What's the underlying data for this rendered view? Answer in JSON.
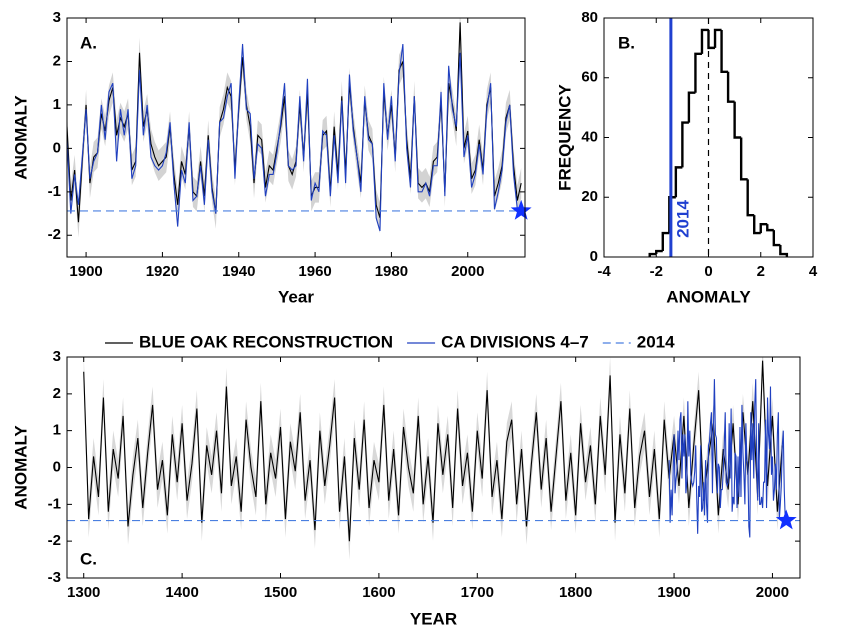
{
  "chart_data": [
    {
      "type": "line",
      "label": "A.",
      "xlabel": "Year",
      "ylabel": "ANOMALY",
      "xlim": [
        1895,
        2015
      ],
      "xticks": [
        1900,
        1920,
        1940,
        1960,
        1980,
        2000
      ],
      "ylim": [
        -2.5,
        3
      ],
      "yticks": [
        -2,
        -1,
        0,
        1,
        2,
        3
      ],
      "error": 0.35,
      "band_color": "#d3d3d3",
      "reference": {
        "x": 2014,
        "value": -1.44,
        "color": "#4a7fe0"
      },
      "x": [
        1895,
        1896,
        1897,
        1898,
        1899,
        1900,
        1901,
        1902,
        1903,
        1904,
        1905,
        1906,
        1907,
        1908,
        1909,
        1910,
        1911,
        1912,
        1913,
        1914,
        1915,
        1916,
        1917,
        1918,
        1919,
        1920,
        1921,
        1922,
        1923,
        1924,
        1925,
        1926,
        1927,
        1928,
        1929,
        1930,
        1931,
        1932,
        1933,
        1934,
        1935,
        1936,
        1937,
        1938,
        1939,
        1940,
        1941,
        1942,
        1943,
        1944,
        1945,
        1946,
        1947,
        1948,
        1949,
        1950,
        1951,
        1952,
        1953,
        1954,
        1955,
        1956,
        1957,
        1958,
        1959,
        1960,
        1961,
        1962,
        1963,
        1964,
        1965,
        1966,
        1967,
        1968,
        1969,
        1970,
        1971,
        1972,
        1973,
        1974,
        1975,
        1976,
        1977,
        1978,
        1979,
        1980,
        1981,
        1982,
        1983,
        1984,
        1985,
        1986,
        1987,
        1988,
        1989,
        1990,
        1991,
        1992,
        1993,
        1994,
        1995,
        1996,
        1997,
        1998,
        1999,
        2000,
        2001,
        2002,
        2003,
        2004,
        2005,
        2006,
        2007,
        2008,
        2009,
        2010,
        2011,
        2012,
        2013,
        2014
      ],
      "series": [
        {
          "color": "#000000",
          "values": [
            0.5,
            -1.2,
            -0.5,
            -1.7,
            -0.3,
            1.0,
            -0.8,
            -0.2,
            -0.1,
            0.8,
            0.4,
            1.1,
            1.4,
            0.3,
            0.7,
            0.5,
            0.8,
            -0.5,
            -0.3,
            2.2,
            0.5,
            0.9,
            0.1,
            -0.2,
            -0.4,
            -0.3,
            -0.2,
            0.5,
            -0.6,
            -1.3,
            -0.3,
            -0.6,
            0.5,
            -1.0,
            -1.1,
            -0.3,
            -1.1,
            0.3,
            -0.9,
            -1.5,
            0.6,
            0.9,
            1.4,
            1.2,
            -0.5,
            0.9,
            2.1,
            1.0,
            0.5,
            -0.8,
            0.3,
            0.2,
            -0.9,
            -0.4,
            -0.5,
            0.0,
            0.5,
            1.2,
            -0.4,
            -0.6,
            -0.3,
            1.0,
            -0.2,
            1.3,
            -1.1,
            -0.9,
            -0.9,
            0.3,
            0.4,
            -1.0,
            0.5,
            -0.6,
            1.2,
            -0.6,
            1.5,
            0.5,
            -0.2,
            -0.8,
            1.1,
            0.3,
            0.1,
            -1.3,
            -1.6,
            1.3,
            0.3,
            1.0,
            -0.2,
            1.8,
            2.0,
            0.2,
            -0.7,
            1.2,
            -0.8,
            -0.9,
            -0.8,
            -1.0,
            -0.3,
            -0.2,
            1.1,
            -1.0,
            1.5,
            1.0,
            0.4,
            2.9,
            0.0,
            0.4,
            -0.7,
            -0.5,
            0.2,
            -0.5,
            1.0,
            1.4,
            -1.1,
            -0.8,
            -0.4,
            0.7,
            1.0,
            -0.4,
            -1.2,
            -0.8
          ]
        },
        {
          "color": "#2040c0",
          "values": [
            0.2,
            -1.5,
            -0.6,
            -1.3,
            -0.2,
            0.9,
            -0.7,
            -0.3,
            -0.1,
            1.0,
            0.2,
            1.3,
            1.5,
            -0.3,
            0.9,
            0.3,
            0.9,
            -0.7,
            -0.4,
            1.8,
            0.3,
            1.0,
            -0.2,
            -0.4,
            -0.5,
            -0.4,
            -0.1,
            0.6,
            -0.8,
            -1.8,
            -0.5,
            -0.8,
            0.6,
            -1.2,
            -1.1,
            -0.4,
            -1.3,
            0.2,
            -1.0,
            -1.5,
            0.6,
            0.7,
            1.2,
            1.5,
            -0.7,
            1.0,
            2.4,
            0.9,
            0.8,
            -0.7,
            0.1,
            0.0,
            -1.1,
            -0.6,
            -0.6,
            -0.1,
            0.6,
            1.5,
            -0.4,
            -0.5,
            -0.4,
            1.2,
            -0.3,
            1.6,
            -1.2,
            -0.8,
            -1.0,
            0.4,
            0.3,
            -1.1,
            0.3,
            -0.8,
            1.1,
            -0.8,
            1.7,
            0.4,
            -0.2,
            -1.0,
            1.2,
            0.2,
            0.1,
            -1.6,
            -1.9,
            1.5,
            0.2,
            1.2,
            -0.3,
            1.7,
            2.4,
            0.0,
            -0.9,
            1.2,
            -1.0,
            -1.0,
            -0.8,
            -1.1,
            -0.4,
            -0.4,
            1.3,
            -1.1,
            1.9,
            0.9,
            0.5,
            2.2,
            -0.2,
            0.3,
            -0.9,
            -0.6,
            0.1,
            -0.6,
            0.9,
            1.5,
            -1.4,
            -1.0,
            -0.5,
            0.6,
            1.0,
            -0.6,
            -1.4,
            -1.44
          ]
        }
      ]
    },
    {
      "type": "histogram",
      "label": "B.",
      "xlabel": "ANOMALY",
      "ylabel": "FREQUENCY",
      "xlim": [
        -4,
        4
      ],
      "xticks": [
        -4,
        -2,
        0,
        2,
        4
      ],
      "ylim": [
        0,
        80
      ],
      "yticks": [
        0,
        20,
        40,
        60,
        80
      ],
      "color": "#000000",
      "dashed_line": 0,
      "reference": {
        "label": "2014",
        "value": -1.44,
        "color": "#2040d0"
      },
      "bins": [
        -2.25,
        -2.0,
        -1.75,
        -1.5,
        -1.25,
        -1.0,
        -0.75,
        -0.5,
        -0.25,
        0.0,
        0.25,
        0.5,
        0.75,
        1.0,
        1.25,
        1.5,
        1.75,
        2.0,
        2.25,
        2.5,
        2.75,
        3.0
      ],
      "counts": [
        1,
        2,
        8,
        20,
        30,
        45,
        55,
        68,
        76,
        70,
        76,
        62,
        52,
        40,
        26,
        14,
        8,
        11,
        9,
        4,
        1
      ]
    },
    {
      "type": "line",
      "label": "C.",
      "xlabel": "YEAR",
      "ylabel": "ANOMALY",
      "xlim": [
        1283,
        2028
      ],
      "xticks": [
        1300,
        1400,
        1500,
        1600,
        1700,
        1800,
        1900,
        2000
      ],
      "ylim": [
        -3,
        3
      ],
      "yticks": [
        -3,
        -2,
        -1,
        0,
        1,
        2,
        3
      ],
      "error": 0.5,
      "band_color": "#d8d8d8",
      "legend": "top",
      "reference": {
        "name": "2014",
        "x": 2014,
        "value": -1.44,
        "color": "#4a7fe0"
      },
      "series": [
        {
          "name": "BLUE OAK RECONSTRUCTION",
          "color": "#000000",
          "x": [
            1300,
            1305,
            1310,
            1315,
            1320,
            1325,
            1330,
            1335,
            1340,
            1345,
            1350,
            1355,
            1360,
            1365,
            1370,
            1375,
            1380,
            1385,
            1390,
            1395,
            1400,
            1405,
            1410,
            1415,
            1420,
            1425,
            1430,
            1435,
            1440,
            1445,
            1450,
            1455,
            1460,
            1465,
            1470,
            1475,
            1480,
            1485,
            1490,
            1495,
            1500,
            1505,
            1510,
            1515,
            1520,
            1525,
            1530,
            1535,
            1540,
            1545,
            1550,
            1555,
            1560,
            1565,
            1570,
            1575,
            1580,
            1585,
            1590,
            1595,
            1600,
            1605,
            1610,
            1615,
            1620,
            1625,
            1630,
            1635,
            1640,
            1645,
            1650,
            1655,
            1660,
            1665,
            1670,
            1675,
            1680,
            1685,
            1690,
            1695,
            1700,
            1705,
            1710,
            1715,
            1720,
            1725,
            1730,
            1735,
            1740,
            1745,
            1750,
            1755,
            1760,
            1765,
            1770,
            1775,
            1780,
            1785,
            1790,
            1795,
            1800,
            1805,
            1810,
            1815,
            1820,
            1825,
            1830,
            1835,
            1840,
            1845,
            1850,
            1855,
            1860,
            1865,
            1870,
            1875,
            1880,
            1885,
            1890,
            1895,
            1900,
            1905,
            1910,
            1915,
            1920,
            1925,
            1930,
            1935,
            1940,
            1945,
            1950,
            1955,
            1960,
            1965,
            1970,
            1975,
            1980,
            1985,
            1990,
            1995,
            2000,
            2005,
            2010
          ],
          "values": [
            2.6,
            -1.4,
            0.3,
            -0.8,
            1.9,
            -1.2,
            0.5,
            -0.3,
            1.4,
            -1.6,
            -0.2,
            0.8,
            -1.1,
            0.4,
            1.7,
            -0.6,
            0.2,
            -1.3,
            0.9,
            -0.4,
            1.2,
            -0.9,
            0.1,
            1.6,
            -1.5,
            0.6,
            -0.2,
            1.0,
            -0.7,
            2.2,
            -0.5,
            0.3,
            -1.2,
            1.3,
            0.0,
            -0.8,
            1.8,
            -1.0,
            0.4,
            -0.3,
            1.1,
            -1.4,
            0.7,
            -0.1,
            1.5,
            -0.9,
            0.2,
            -1.7,
            1.0,
            -0.5,
            0.6,
            1.9,
            -1.2,
            0.3,
            -2.0,
            0.8,
            -0.6,
            1.3,
            -1.1,
            0.2,
            -0.4,
            1.7,
            -0.9,
            0.5,
            -1.3,
            1.1,
            0.0,
            -0.7,
            1.4,
            -1.0,
            0.3,
            -1.5,
            1.2,
            -0.2,
            0.9,
            -1.1,
            1.6,
            -0.5,
            0.4,
            -1.2,
            1.0,
            -0.3,
            2.1,
            -0.8,
            0.2,
            -1.4,
            0.7,
            1.3,
            -1.0,
            0.5,
            -1.6,
            0.1,
            1.5,
            -0.6,
            0.8,
            -1.2,
            0.3,
            1.8,
            -0.9,
            0.4,
            -1.3,
            1.2,
            -0.4,
            0.6,
            -1.0,
            1.4,
            -0.2,
            2.5,
            -1.5,
            0.9,
            -0.7,
            1.6,
            -1.1,
            0.3,
            1.0,
            -0.8,
            0.5,
            -1.4,
            1.3,
            -0.3,
            0.9,
            -0.5,
            1.4,
            -1.1,
            0.6,
            2.1,
            -0.9,
            0.3,
            1.2,
            -1.3,
            0.5,
            -0.6,
            1.2,
            -1.0,
            1.5,
            -0.2,
            1.8,
            -0.8,
            2.9,
            -0.5,
            1.4,
            -1.2,
            0.6
          ]
        },
        {
          "name": "CA DIVISIONS 4–7",
          "color": "#2040c0",
          "x": [
            1895,
            1896,
            1897,
            1898,
            1899,
            1900,
            1901,
            1902,
            1903,
            1904,
            1905,
            1906,
            1907,
            1908,
            1909,
            1910,
            1911,
            1912,
            1913,
            1914,
            1915,
            1916,
            1917,
            1918,
            1919,
            1920,
            1921,
            1922,
            1923,
            1924,
            1925,
            1926,
            1927,
            1928,
            1929,
            1930,
            1931,
            1932,
            1933,
            1934,
            1935,
            1936,
            1937,
            1938,
            1939,
            1940,
            1941,
            1942,
            1943,
            1944,
            1945,
            1946,
            1947,
            1948,
            1949,
            1950,
            1951,
            1952,
            1953,
            1954,
            1955,
            1956,
            1957,
            1958,
            1959,
            1960,
            1961,
            1962,
            1963,
            1964,
            1965,
            1966,
            1967,
            1968,
            1969,
            1970,
            1971,
            1972,
            1973,
            1974,
            1975,
            1976,
            1977,
            1978,
            1979,
            1980,
            1981,
            1982,
            1983,
            1984,
            1985,
            1986,
            1987,
            1988,
            1989,
            1990,
            1991,
            1992,
            1993,
            1994,
            1995,
            1996,
            1997,
            1998,
            1999,
            2000,
            2001,
            2002,
            2003,
            2004,
            2005,
            2006,
            2007,
            2008,
            2009,
            2010,
            2011,
            2012,
            2013,
            2014
          ],
          "values": [
            0.2,
            -1.5,
            -0.6,
            -1.3,
            -0.2,
            0.9,
            -0.7,
            -0.3,
            -0.1,
            1.0,
            0.2,
            1.3,
            1.5,
            -0.3,
            0.9,
            0.3,
            0.9,
            -0.7,
            -0.4,
            1.8,
            0.3,
            1.0,
            -0.2,
            -0.4,
            -0.5,
            -0.4,
            -0.1,
            0.6,
            -0.8,
            -1.8,
            -0.5,
            -0.8,
            0.6,
            -1.2,
            -1.1,
            -0.4,
            -1.3,
            0.2,
            -1.0,
            -1.5,
            0.6,
            0.7,
            1.2,
            1.5,
            -0.7,
            1.0,
            2.4,
            0.9,
            0.8,
            -0.7,
            0.1,
            0.0,
            -1.1,
            -0.6,
            -0.6,
            -0.1,
            0.6,
            1.5,
            -0.4,
            -0.5,
            -0.4,
            1.2,
            -0.3,
            1.6,
            -1.2,
            -0.8,
            -1.0,
            0.4,
            0.3,
            -1.1,
            0.3,
            -0.8,
            1.1,
            -0.8,
            1.7,
            0.4,
            -0.2,
            -1.0,
            1.2,
            0.2,
            0.1,
            -1.6,
            -1.9,
            1.5,
            0.2,
            1.2,
            -0.3,
            1.7,
            2.4,
            0.0,
            -0.9,
            1.2,
            -1.0,
            -1.0,
            -0.8,
            -1.1,
            -0.4,
            -0.4,
            1.3,
            -1.1,
            1.9,
            0.9,
            0.5,
            2.2,
            -0.2,
            0.3,
            -0.9,
            -0.6,
            0.1,
            -0.6,
            0.9,
            1.5,
            -1.4,
            -1.0,
            -0.5,
            0.6,
            1.0,
            -0.6,
            -1.4,
            -1.44
          ]
        }
      ]
    }
  ]
}
